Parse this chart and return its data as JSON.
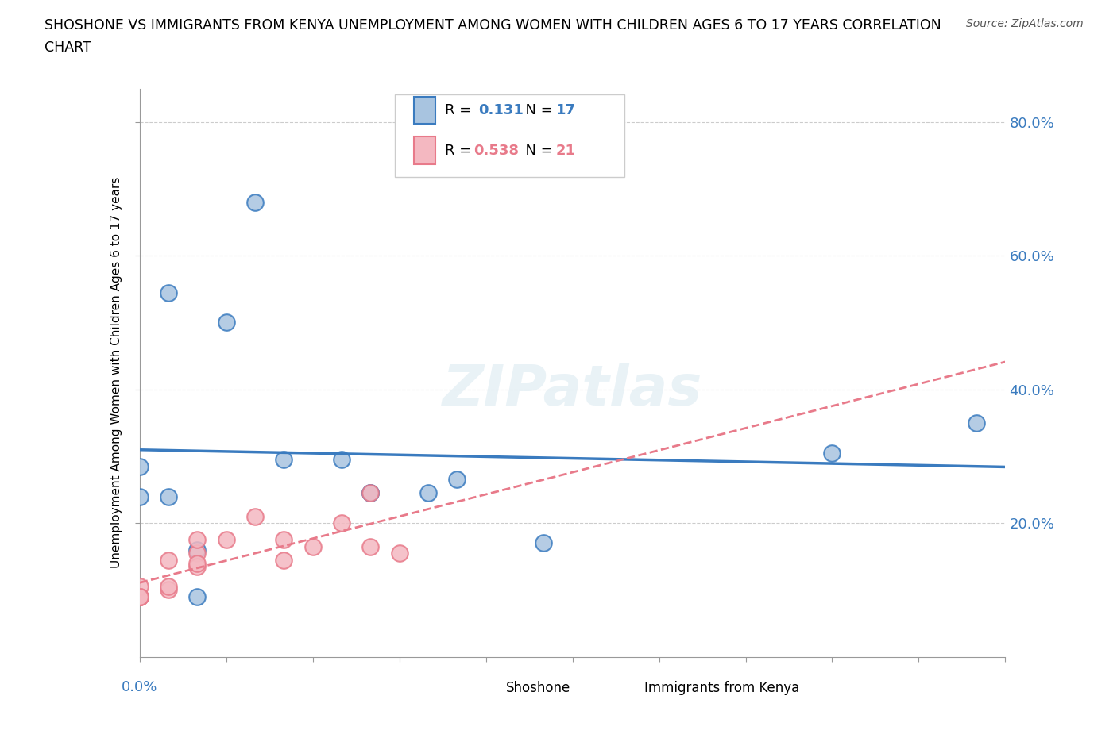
{
  "title_line1": "SHOSHONE VS IMMIGRANTS FROM KENYA UNEMPLOYMENT AMONG WOMEN WITH CHILDREN AGES 6 TO 17 YEARS CORRELATION",
  "title_line2": "CHART",
  "source": "Source: ZipAtlas.com",
  "ylabel_label": "Unemployment Among Women with Children Ages 6 to 17 years",
  "shoshone_R": "0.131",
  "shoshone_N": "17",
  "kenya_R": "0.538",
  "kenya_N": "21",
  "legend_label_1": "Shoshone",
  "legend_label_2": "Immigrants from Kenya",
  "shoshone_color": "#a8c4e0",
  "kenya_color": "#f4b8c1",
  "shoshone_line_color": "#3a7bbf",
  "kenya_line_color": "#e87a8a",
  "watermark": "ZIPatlas",
  "xmin": 0.0,
  "xmax": 0.15,
  "ymin": 0.0,
  "ymax": 0.85,
  "shoshone_points": [
    [
      0.0,
      0.285
    ],
    [
      0.0,
      0.24
    ],
    [
      0.005,
      0.545
    ],
    [
      0.005,
      0.24
    ],
    [
      0.01,
      0.16
    ],
    [
      0.01,
      0.09
    ],
    [
      0.015,
      0.5
    ],
    [
      0.02,
      0.68
    ],
    [
      0.025,
      0.295
    ],
    [
      0.035,
      0.295
    ],
    [
      0.04,
      0.245
    ],
    [
      0.04,
      0.245
    ],
    [
      0.05,
      0.245
    ],
    [
      0.055,
      0.265
    ],
    [
      0.07,
      0.17
    ],
    [
      0.12,
      0.305
    ],
    [
      0.145,
      0.35
    ]
  ],
  "kenya_points": [
    [
      0.0,
      0.09
    ],
    [
      0.0,
      0.09
    ],
    [
      0.0,
      0.105
    ],
    [
      0.0,
      0.09
    ],
    [
      0.0,
      0.09
    ],
    [
      0.005,
      0.1
    ],
    [
      0.005,
      0.105
    ],
    [
      0.005,
      0.145
    ],
    [
      0.01,
      0.155
    ],
    [
      0.01,
      0.135
    ],
    [
      0.01,
      0.14
    ],
    [
      0.01,
      0.175
    ],
    [
      0.015,
      0.175
    ],
    [
      0.02,
      0.21
    ],
    [
      0.025,
      0.145
    ],
    [
      0.025,
      0.175
    ],
    [
      0.03,
      0.165
    ],
    [
      0.035,
      0.2
    ],
    [
      0.04,
      0.165
    ],
    [
      0.04,
      0.245
    ],
    [
      0.045,
      0.155
    ]
  ]
}
